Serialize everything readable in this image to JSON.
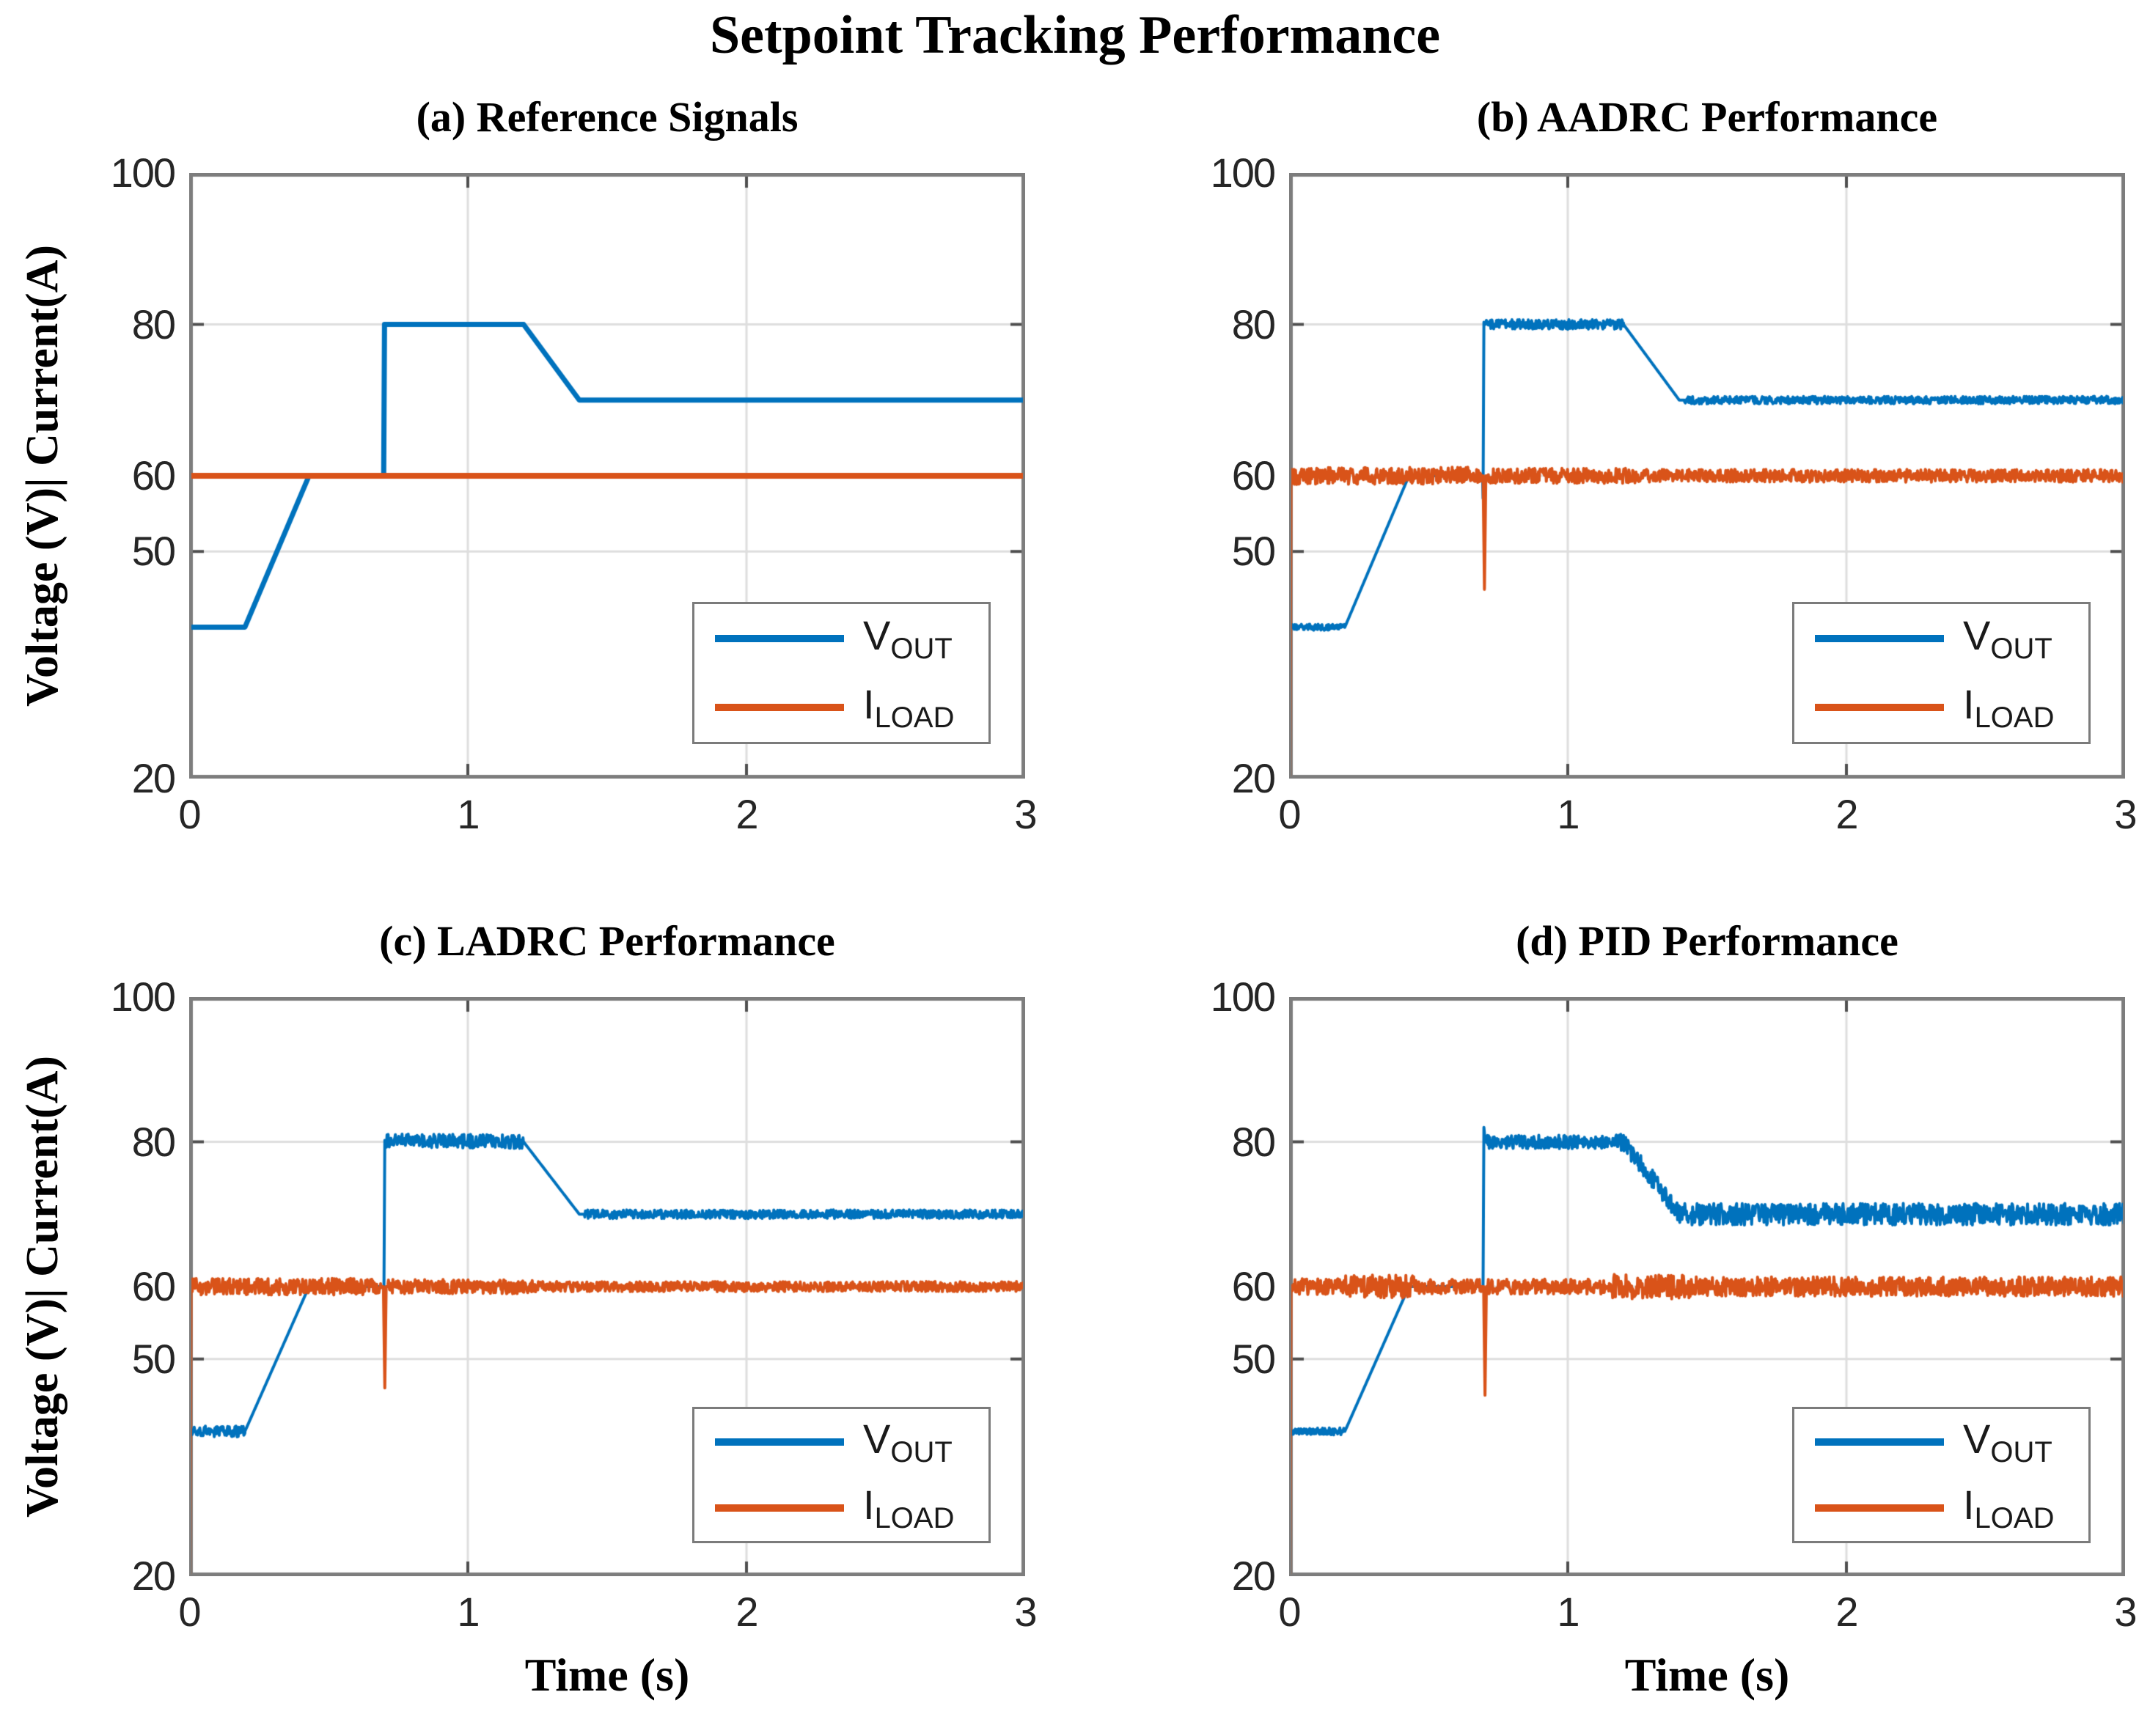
{
  "title": "Setpoint Tracking Performance",
  "ylabel": "Voltage (V)| Current(A)",
  "xlabel": "Time (s)",
  "legend": {
    "entries": [
      {
        "series": "vout",
        "main": "V",
        "sub": "OUT"
      },
      {
        "series": "iload",
        "main": "I",
        "sub": "LOAD"
      }
    ]
  },
  "colors": {
    "vout": "#0072BD",
    "iload": "#D95319",
    "axis_box": "#7d7d7d",
    "tick_mark": "#4f4f4f",
    "grid": "#dedede",
    "tick_text": "#262626",
    "title_text": "#000000",
    "background": "#ffffff"
  },
  "axes": {
    "xlim": [
      0,
      3
    ],
    "ylim": [
      20,
      100
    ],
    "xticks": [
      0,
      1,
      2,
      3
    ],
    "yticks": [
      100,
      80,
      60,
      50,
      20
    ],
    "xgrid": [
      1,
      2
    ],
    "ygrid": [
      80,
      60,
      50
    ],
    "grid_on": true
  },
  "chart_data": [
    {
      "id": "a",
      "type": "line",
      "title": "(a) Reference Signals",
      "seed": 11,
      "series": [
        {
          "name": "vout",
          "label": "V_OUT",
          "width": 7,
          "points": [
            [
              0,
              40
            ],
            [
              0.2,
              40
            ],
            [
              0.43,
              60
            ],
            [
              0.698,
              60
            ],
            [
              0.701,
              80
            ],
            [
              1.2,
              80
            ],
            [
              1.4,
              70
            ],
            [
              3,
              70
            ]
          ],
          "noise": []
        },
        {
          "name": "iload",
          "label": "I_LOAD",
          "width": 8,
          "points": [
            [
              0,
              60
            ],
            [
              3,
              60
            ]
          ],
          "noise": []
        }
      ]
    },
    {
      "id": "b",
      "type": "line",
      "title": "(b) AADRC Performance",
      "seed": 101,
      "series": [
        {
          "name": "vout",
          "label": "V_OUT",
          "width": 4,
          "points": [
            [
              0,
              40
            ],
            [
              0.2,
              40
            ],
            [
              0.43,
              60
            ],
            [
              0.694,
              60
            ],
            [
              0.696,
              57
            ],
            [
              0.699,
              80.3
            ],
            [
              0.703,
              80
            ],
            [
              1.2,
              80
            ],
            [
              1.4,
              70
            ],
            [
              3,
              70
            ]
          ],
          "noise": [
            [
              0,
              0.2,
              0.4
            ],
            [
              0.705,
              1.2,
              0.65
            ],
            [
              1.42,
              3,
              0.5
            ]
          ]
        },
        {
          "name": "iload",
          "label": "I_LOAD",
          "width": 4,
          "points": [
            [
              0.003,
              20
            ],
            [
              0.007,
              60
            ],
            [
              0.696,
              60
            ],
            [
              0.701,
              45
            ],
            [
              0.706,
              60
            ],
            [
              3,
              60
            ]
          ],
          "noise": [
            [
              0.007,
              0.69,
              1.15
            ],
            [
              0.712,
              1.25,
              1.0
            ],
            [
              1.25,
              3,
              0.85
            ]
          ]
        }
      ]
    },
    {
      "id": "c",
      "type": "line",
      "title": "(c) LADRC Performance",
      "seed": 202,
      "series": [
        {
          "name": "vout",
          "label": "V_OUT",
          "width": 4,
          "points": [
            [
              0,
              40
            ],
            [
              0.2,
              40
            ],
            [
              0.43,
              60
            ],
            [
              0.699,
              60
            ],
            [
              0.702,
              80.2
            ],
            [
              1.2,
              80
            ],
            [
              1.4,
              70
            ],
            [
              3,
              70
            ]
          ],
          "noise": [
            [
              0,
              0.2,
              0.75
            ],
            [
              0.708,
              1.2,
              0.95
            ],
            [
              1.42,
              3,
              0.6
            ]
          ]
        },
        {
          "name": "iload",
          "label": "I_LOAD",
          "width": 4,
          "points": [
            [
              0.003,
              20
            ],
            [
              0.007,
              60
            ],
            [
              0.697,
              60
            ],
            [
              0.702,
              46
            ],
            [
              0.707,
              60
            ],
            [
              3,
              60
            ]
          ],
          "noise": [
            [
              0.007,
              0.69,
              1.15
            ],
            [
              0.712,
              1.25,
              1.0
            ],
            [
              1.25,
              3,
              0.7
            ]
          ]
        }
      ]
    },
    {
      "id": "d",
      "type": "line",
      "title": "(d) PID Performance",
      "seed": 303,
      "series": [
        {
          "name": "vout",
          "label": "V_OUT",
          "width": 4,
          "points": [
            [
              0,
              40
            ],
            [
              0.2,
              40
            ],
            [
              0.43,
              60
            ],
            [
              0.696,
              60
            ],
            [
              0.699,
              82
            ],
            [
              0.704,
              80
            ],
            [
              1.2,
              80
            ],
            [
              1.4,
              70
            ],
            [
              3,
              70
            ]
          ],
          "noise": [
            [
              0,
              0.2,
              0.5
            ],
            [
              0.707,
              1.18,
              0.95
            ],
            [
              1.18,
              1.42,
              1.3
            ],
            [
              1.42,
              3,
              1.5
            ]
          ]
        },
        {
          "name": "iload",
          "label": "I_LOAD",
          "width": 4,
          "points": [
            [
              0.003,
              20
            ],
            [
              0.007,
              60
            ],
            [
              0.698,
              60
            ],
            [
              0.703,
              45
            ],
            [
              0.708,
              60
            ],
            [
              3,
              60
            ]
          ],
          "noise": [
            [
              0.007,
              0.2,
              1.1
            ],
            [
              0.2,
              0.45,
              1.6
            ],
            [
              0.45,
              0.69,
              1.0
            ],
            [
              0.714,
              1.15,
              1.05
            ],
            [
              1.15,
              1.45,
              1.7
            ],
            [
              1.45,
              3,
              1.35
            ]
          ]
        }
      ]
    }
  ]
}
